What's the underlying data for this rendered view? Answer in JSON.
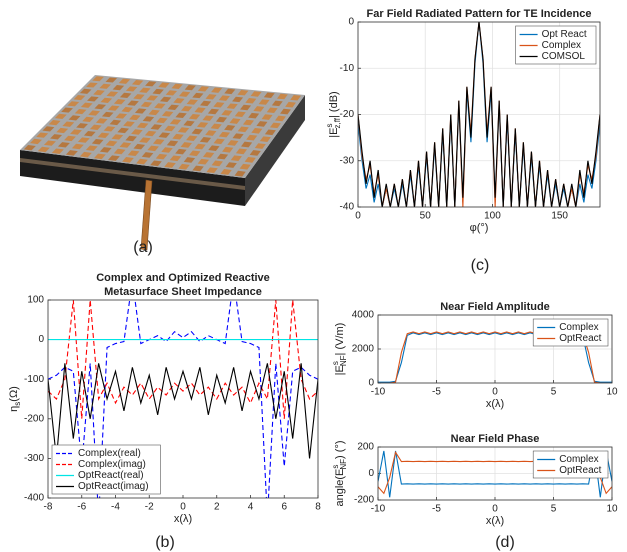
{
  "panels": [
    "(a)",
    "(b)",
    "(c)",
    "(d)"
  ],
  "chart_data": [
    {
      "type": "line",
      "title": [
        "Far Field Radiated Pattern for TE Incidence"
      ],
      "xlabel": {
        "base": "φ(°)"
      },
      "ylabel": {
        "base": "|E",
        "sup": "s",
        "sub": "z,ff",
        "rest": "| (dB)"
      },
      "x": [
        0,
        3,
        6,
        9,
        12,
        15,
        18,
        21,
        24,
        27,
        30,
        33,
        36,
        39,
        42,
        45,
        48,
        51,
        54,
        57,
        60,
        63,
        66,
        69,
        72,
        75,
        78,
        81,
        84,
        87,
        90,
        93,
        96,
        99,
        102,
        105,
        108,
        111,
        114,
        117,
        120,
        123,
        126,
        129,
        132,
        135,
        138,
        141,
        144,
        147,
        150,
        153,
        156,
        159,
        162,
        165,
        168,
        171,
        174,
        177,
        180
      ],
      "xlim": [
        0,
        180
      ],
      "xticks": [
        0,
        50,
        100,
        150
      ],
      "ylim": [
        -40,
        0
      ],
      "yticks": [
        -40,
        -30,
        -20,
        -10,
        0
      ],
      "grid": true,
      "legend": "upper right",
      "series": [
        {
          "name": "Opt React",
          "color": "#0072bd",
          "values": [
            -22,
            -30,
            -36,
            -33,
            -39,
            -35,
            -40,
            -36,
            -40,
            -36,
            -40,
            -35,
            -40,
            -33,
            -40,
            -31,
            -40,
            -29,
            -40,
            -27,
            -40,
            -24,
            -40,
            -21,
            -40,
            -18,
            -39,
            -15,
            -26,
            -9,
            0,
            -9,
            -26,
            -15,
            -39,
            -18,
            -40,
            -21,
            -40,
            -24,
            -40,
            -27,
            -40,
            -29,
            -40,
            -31,
            -40,
            -33,
            -40,
            -35,
            -40,
            -36,
            -40,
            -36,
            -40,
            -35,
            -39,
            -33,
            -36,
            -30,
            -22
          ]
        },
        {
          "name": "Complex",
          "color": "#d95319",
          "values": [
            -20,
            -29,
            -34,
            -31,
            -37,
            -33,
            -40,
            -36,
            -40,
            -35,
            -40,
            -34,
            -40,
            -32,
            -40,
            -30,
            -40,
            -28,
            -40,
            -26,
            -40,
            -23,
            -40,
            -20,
            -40,
            -17,
            -40,
            -14,
            -24,
            -8,
            0,
            -8,
            -24,
            -14,
            -40,
            -17,
            -40,
            -20,
            -40,
            -23,
            -40,
            -26,
            -40,
            -28,
            -40,
            -30,
            -40,
            -32,
            -40,
            -34,
            -40,
            -35,
            -40,
            -36,
            -40,
            -33,
            -37,
            -31,
            -34,
            -29,
            -20
          ]
        },
        {
          "name": "COMSOL",
          "color": "#000000",
          "values": [
            -20,
            -28,
            -35,
            -30,
            -38,
            -32,
            -40,
            -35,
            -40,
            -35,
            -40,
            -34,
            -40,
            -32,
            -40,
            -30,
            -40,
            -28,
            -40,
            -26,
            -40,
            -23,
            -40,
            -20,
            -40,
            -17,
            -38,
            -14,
            -25,
            -8,
            0,
            -8,
            -25,
            -14,
            -38,
            -17,
            -40,
            -20,
            -40,
            -23,
            -40,
            -26,
            -40,
            -28,
            -40,
            -30,
            -40,
            -32,
            -40,
            -34,
            -40,
            -35,
            -40,
            -35,
            -40,
            -32,
            -38,
            -30,
            -35,
            -28,
            -20
          ]
        }
      ]
    },
    {
      "type": "line",
      "title": [
        "Complex and Optimized Reactive",
        "Metasurface Sheet Impedance"
      ],
      "xlabel": {
        "base": "x(λ)"
      },
      "ylabel": {
        "base": "η",
        "sub": "s",
        "rest": "(Ω)"
      },
      "x": [
        -8,
        -7.5,
        -7,
        -6.5,
        -6,
        -5.5,
        -5,
        -4.5,
        -4,
        -3.5,
        -3,
        -2.5,
        -2,
        -1.5,
        -1,
        -0.5,
        0,
        0.5,
        1,
        1.5,
        2,
        2.5,
        3,
        3.5,
        4,
        4.5,
        5,
        5.5,
        6,
        6.5,
        7,
        7.5,
        8
      ],
      "xlim": [
        -8,
        8
      ],
      "xticks": [
        -8,
        -6,
        -4,
        -2,
        0,
        2,
        4,
        6,
        8
      ],
      "ylim": [
        -400,
        100
      ],
      "yticks": [
        -400,
        -300,
        -200,
        -100,
        0,
        100
      ],
      "grid": false,
      "legend": "lower left",
      "series": [
        {
          "name": "Complex(real)",
          "color": "#0000ff",
          "dash": true,
          "values": [
            -100,
            -90,
            -70,
            -80,
            -320,
            -60,
            -450,
            -20,
            -10,
            -5,
            150,
            -10,
            0,
            10,
            -5,
            20,
            5,
            20,
            -5,
            10,
            0,
            -10,
            150,
            -5,
            -10,
            -20,
            -450,
            -60,
            -320,
            -80,
            -70,
            -90,
            -100
          ]
        },
        {
          "name": "Complex(imag)",
          "color": "#ff0000",
          "dash": true,
          "values": [
            -130,
            -150,
            -100,
            100,
            -200,
            100,
            -150,
            -110,
            -160,
            -120,
            -140,
            -110,
            -150,
            -120,
            -140,
            -110,
            -130,
            -110,
            -140,
            -120,
            -150,
            -110,
            -140,
            -120,
            -160,
            -110,
            -150,
            100,
            -200,
            100,
            -100,
            -150,
            -130
          ]
        },
        {
          "name": "OptReact(real)",
          "color": "#00e5e5",
          "values": [
            0,
            0,
            0,
            0,
            0,
            0,
            0,
            0,
            0,
            0,
            0,
            0,
            0,
            0,
            0,
            0,
            0,
            0,
            0,
            0,
            0,
            0,
            0,
            0,
            0,
            0,
            0,
            0,
            0,
            0,
            0,
            0,
            0
          ]
        },
        {
          "name": "OptReact(imag)",
          "color": "#000000",
          "values": [
            -100,
            -300,
            -60,
            -250,
            -80,
            -200,
            -60,
            -150,
            -80,
            -180,
            -70,
            -160,
            -90,
            -190,
            -70,
            -150,
            -80,
            -150,
            -70,
            -190,
            -90,
            -160,
            -70,
            -180,
            -80,
            -150,
            -60,
            -200,
            -80,
            -250,
            -60,
            -300,
            -100
          ]
        }
      ]
    },
    {
      "type": "line",
      "title": [
        "Near Field Amplitude"
      ],
      "ylabel": {
        "base": "|E",
        "sup": "s",
        "sub": "NF",
        "rest": "| (V/m)"
      },
      "xlabel": {
        "base": "x(λ)"
      },
      "x": [
        -10,
        -9.5,
        -9,
        -8.5,
        -8,
        -7.5,
        -7,
        -6.5,
        -6,
        -5.5,
        -5,
        -4.5,
        -4,
        -3.5,
        -3,
        -2.5,
        -2,
        -1.5,
        -1,
        -0.5,
        0,
        0.5,
        1,
        1.5,
        2,
        2.5,
        3,
        3.5,
        4,
        4.5,
        5,
        5.5,
        6,
        6.5,
        7,
        7.5,
        8,
        8.5,
        9,
        9.5,
        10
      ],
      "xlim": [
        -10,
        10
      ],
      "xticks": [
        -10,
        -5,
        0,
        5,
        10
      ],
      "ylim": [
        0,
        4000
      ],
      "yticks": [
        0,
        2000,
        4000
      ],
      "grid": true,
      "legend": "upper right",
      "series": [
        {
          "name": "Complex",
          "color": "#0072bd",
          "values": [
            50,
            50,
            50,
            100,
            1200,
            2800,
            2950,
            2850,
            2950,
            2850,
            2950,
            2850,
            2950,
            2850,
            2950,
            2850,
            2950,
            2850,
            2950,
            2850,
            2950,
            2850,
            2950,
            2850,
            2950,
            2850,
            2950,
            2850,
            2950,
            2850,
            2950,
            2850,
            2950,
            2850,
            2950,
            2800,
            1200,
            100,
            50,
            50,
            50
          ]
        },
        {
          "name": "OptReact",
          "color": "#d95319",
          "values": [
            0,
            0,
            0,
            50,
            1800,
            2900,
            3000,
            2900,
            3000,
            2900,
            3000,
            2900,
            3000,
            2900,
            3000,
            2900,
            3000,
            2900,
            3000,
            2900,
            3000,
            2900,
            3000,
            2900,
            3000,
            2900,
            3000,
            2900,
            3000,
            2900,
            3000,
            2900,
            3000,
            2900,
            3000,
            2900,
            1800,
            50,
            0,
            0,
            0
          ]
        }
      ]
    },
    {
      "type": "line",
      "title": [
        "Near Field Phase"
      ],
      "ylabel": {
        "base": "angle(E",
        "sup": "s",
        "sub": "NF",
        "rest": ") (°)"
      },
      "xlabel": {
        "base": "x(λ)"
      },
      "x": [
        -10,
        -9.5,
        -9,
        -8.5,
        -8,
        -7.5,
        -7,
        -6.5,
        -6,
        -5.5,
        -5,
        -4.5,
        -4,
        -3.5,
        -3,
        -2.5,
        -2,
        -1.5,
        -1,
        -0.5,
        0,
        0.5,
        1,
        1.5,
        2,
        2.5,
        3,
        3.5,
        4,
        4.5,
        5,
        5.5,
        6,
        6.5,
        7,
        7.5,
        8,
        8.5,
        9,
        9.5,
        10
      ],
      "xlim": [
        -10,
        10
      ],
      "xticks": [
        -10,
        -5,
        0,
        5,
        10
      ],
      "ylim": [
        -200,
        200
      ],
      "yticks": [
        -200,
        0,
        200
      ],
      "grid": true,
      "legend": "upper right",
      "series": [
        {
          "name": "Complex",
          "color": "#0072bd",
          "values": [
            -60,
            170,
            -180,
            170,
            -80,
            -78,
            -80,
            -78,
            -80,
            -78,
            -80,
            -78,
            -80,
            -78,
            -80,
            -78,
            -80,
            -78,
            -80,
            -78,
            -80,
            -78,
            -80,
            -78,
            -80,
            -78,
            -80,
            -78,
            -80,
            -78,
            -80,
            -78,
            -80,
            -78,
            -80,
            -78,
            -80,
            170,
            -180,
            170,
            -60
          ]
        },
        {
          "name": "OptReact",
          "color": "#d95319",
          "values": [
            -100,
            -150,
            -30,
            160,
            90,
            92,
            90,
            92,
            90,
            92,
            90,
            92,
            90,
            92,
            90,
            92,
            90,
            92,
            90,
            92,
            90,
            92,
            90,
            92,
            90,
            92,
            90,
            92,
            90,
            92,
            90,
            92,
            90,
            92,
            90,
            92,
            90,
            160,
            -30,
            -150,
            -100
          ]
        }
      ]
    }
  ]
}
